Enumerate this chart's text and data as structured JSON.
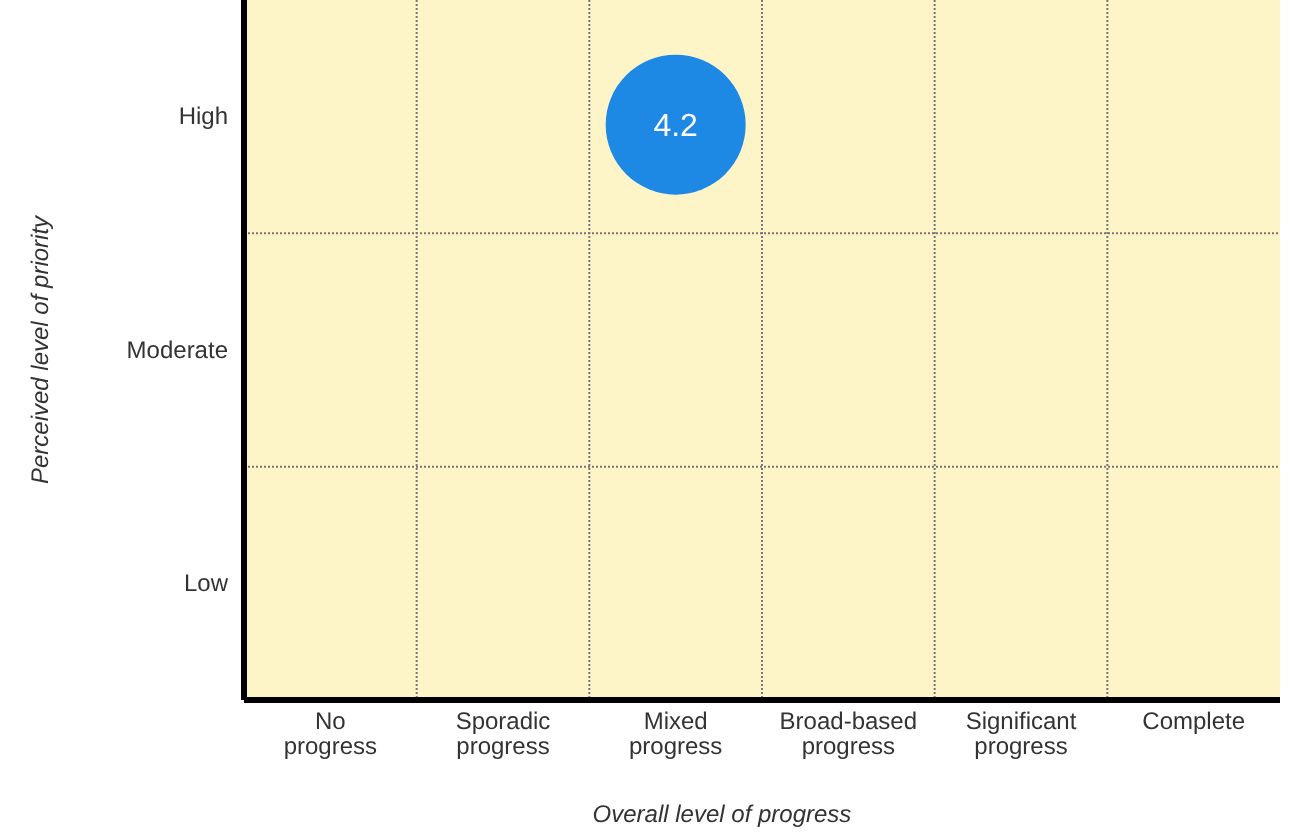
{
  "chart_data": {
    "type": "heatmap",
    "xlabel": "Overall level of progress",
    "ylabel": "Perceived level of priority",
    "categories": [
      "No progress",
      "Sporadic progress",
      "Mixed progress",
      "Broad-based progress",
      "Significant progress",
      "Complete"
    ],
    "y_categories": [
      "High",
      "Moderate",
      "Low"
    ],
    "cells": [
      [
        null,
        null,
        4.2,
        null,
        null,
        null
      ],
      [
        null,
        null,
        null,
        null,
        null,
        null
      ],
      [
        null,
        null,
        null,
        null,
        null,
        null
      ]
    ],
    "data_labels": true,
    "grid": true
  }
}
